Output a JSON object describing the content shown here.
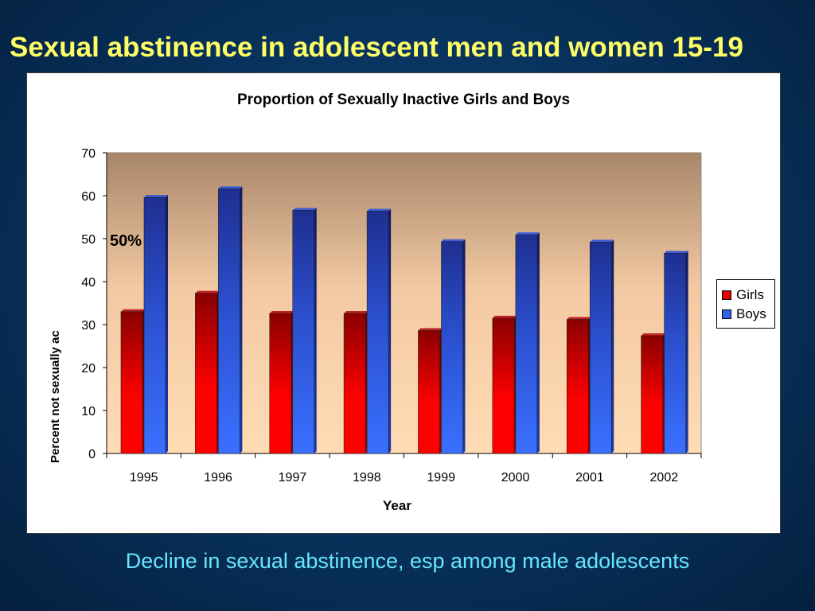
{
  "slide": {
    "title": "Sexual abstinence in adolescent men and women 15-19",
    "subtitle": "Decline in sexual abstinence, esp among male adolescents"
  },
  "chart_data": {
    "type": "bar",
    "title": "Proportion of Sexually Inactive Girls and Boys",
    "xlabel": "Year",
    "ylabel": "Percent not sexually ac",
    "categories": [
      "1995",
      "1996",
      "1997",
      "1998",
      "1999",
      "2000",
      "2001",
      "2002"
    ],
    "series": [
      {
        "name": "Girls",
        "color": "#e00000",
        "values": [
          33,
          37.3,
          32.6,
          32.6,
          28.6,
          31.5,
          31.2,
          27.4
        ]
      },
      {
        "name": "Boys",
        "color": "#2f62e8",
        "values": [
          59.6,
          61.6,
          56.6,
          56.4,
          49.3,
          50.9,
          49.2,
          46.6
        ]
      }
    ],
    "ylim": [
      0,
      70
    ],
    "yticks": [
      0,
      10,
      20,
      30,
      40,
      50,
      60,
      70
    ],
    "annotation": "50%",
    "legend_position": "right",
    "grid": false
  }
}
